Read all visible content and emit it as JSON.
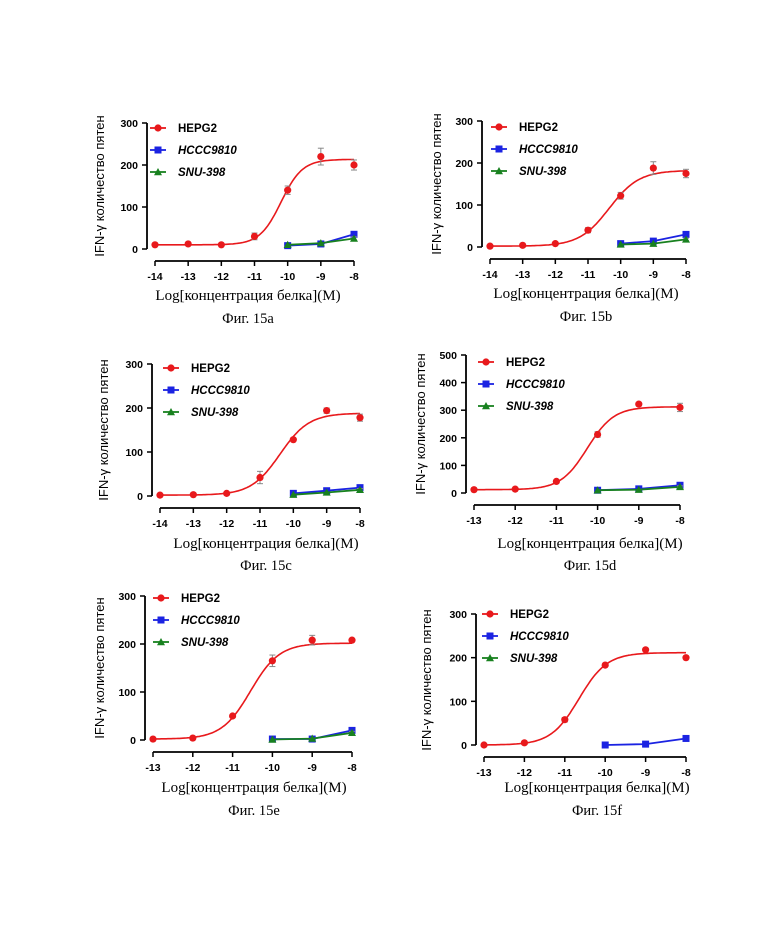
{
  "figure": {
    "ylabel": "IFN-γ количество пятен",
    "xlabel": "Log[концентрация белка](M)",
    "series_names": [
      "HEPG2",
      "HCCC9810",
      "SNU-398"
    ],
    "colors": {
      "HEPG2": "#e8191c",
      "HCCC9810": "#1b23e2",
      "SNU-398": "#18811f"
    }
  },
  "chart_data": [
    {
      "type": "scatter",
      "caption": "Фиг. 15a",
      "xlabel": "Log[концентрация белка](M)",
      "ylabel": "IFN-γ количество пятен",
      "xlim": [
        -14,
        -8
      ],
      "ylim": [
        0,
        300
      ],
      "xticks": [
        "-14",
        "-13",
        "-12",
        "-11",
        "-10",
        "-9",
        "-8"
      ],
      "yticks": [
        "0",
        "100",
        "200",
        "300"
      ],
      "series": [
        {
          "name": "HEPG2",
          "marker": "circle",
          "x": [
            -14,
            -13,
            -12,
            -11,
            -10,
            -9,
            -8
          ],
          "y": [
            10,
            12,
            10,
            30,
            140,
            220,
            200
          ],
          "err": [
            0,
            0,
            0,
            8,
            10,
            20,
            12
          ]
        },
        {
          "name": "HCCC9810",
          "marker": "square",
          "x": [
            -10,
            -9,
            -8
          ],
          "y": [
            8,
            12,
            35
          ],
          "err": [
            0,
            0,
            5
          ]
        },
        {
          "name": "SNU-398",
          "marker": "triangle",
          "x": [
            -10,
            -9,
            -8
          ],
          "y": [
            10,
            14,
            25
          ],
          "err": [
            0,
            0,
            4
          ]
        }
      ]
    },
    {
      "type": "scatter",
      "caption": "Фиг. 15b",
      "xlabel": "Log[концентрация белка](M)",
      "ylabel": "IFN-γ количество пятен",
      "xlim": [
        -14,
        -8
      ],
      "ylim": [
        0,
        300
      ],
      "xticks": [
        "-14",
        "-13",
        "-12",
        "-11",
        "-10",
        "-9",
        "-8"
      ],
      "yticks": [
        "0",
        "100",
        "200",
        "300"
      ],
      "series": [
        {
          "name": "HEPG2",
          "marker": "circle",
          "x": [
            -14,
            -13,
            -12,
            -11,
            -10,
            -9,
            -8
          ],
          "y": [
            2,
            4,
            8,
            40,
            122,
            188,
            175
          ],
          "err": [
            0,
            0,
            0,
            6,
            8,
            15,
            10
          ]
        },
        {
          "name": "HCCC9810",
          "marker": "square",
          "x": [
            -10,
            -9,
            -8
          ],
          "y": [
            8,
            14,
            30
          ],
          "err": [
            0,
            0,
            4
          ]
        },
        {
          "name": "SNU-398",
          "marker": "triangle",
          "x": [
            -10,
            -9,
            -8
          ],
          "y": [
            6,
            8,
            18
          ],
          "err": [
            0,
            0,
            3
          ]
        }
      ]
    },
    {
      "type": "scatter",
      "caption": "Фиг. 15c",
      "xlabel": "Log[концентрация белка](M)",
      "ylabel": "IFN-γ количество пятен",
      "xlim": [
        -14,
        -8
      ],
      "ylim": [
        0,
        300
      ],
      "xticks": [
        "-14",
        "-13",
        "-12",
        "-11",
        "-10",
        "-9",
        "-8"
      ],
      "yticks": [
        "0",
        "100",
        "200",
        "300"
      ],
      "series": [
        {
          "name": "HEPG2",
          "marker": "circle",
          "x": [
            -14,
            -13,
            -12,
            -11,
            -10,
            -9,
            -8
          ],
          "y": [
            2,
            3,
            6,
            42,
            128,
            194,
            178
          ],
          "err": [
            0,
            0,
            0,
            14,
            0,
            6,
            8
          ]
        },
        {
          "name": "HCCC9810",
          "marker": "square",
          "x": [
            -10,
            -9,
            -8
          ],
          "y": [
            6,
            12,
            19
          ],
          "err": [
            0,
            0,
            3
          ]
        },
        {
          "name": "SNU-398",
          "marker": "triangle",
          "x": [
            -10,
            -9,
            -8
          ],
          "y": [
            3,
            8,
            14
          ],
          "err": [
            0,
            0,
            3
          ]
        }
      ]
    },
    {
      "type": "scatter",
      "caption": "Фиг. 15d",
      "xlabel": "Log[концентрация белка](M)",
      "ylabel": "IFN-γ количество пятен",
      "xlim": [
        -13,
        -8
      ],
      "ylim": [
        0,
        500
      ],
      "xticks": [
        "-13",
        "-12",
        "-11",
        "-10",
        "-9",
        "-8"
      ],
      "yticks": [
        "0",
        "100",
        "200",
        "300",
        "400",
        "500"
      ],
      "series": [
        {
          "name": "HEPG2",
          "marker": "circle",
          "x": [
            -13,
            -12,
            -11,
            -10,
            -9,
            -8
          ],
          "y": [
            12,
            14,
            42,
            212,
            322,
            310
          ],
          "err": [
            0,
            0,
            0,
            10,
            6,
            15
          ]
        },
        {
          "name": "HCCC9810",
          "marker": "square",
          "x": [
            -10,
            -9,
            -8
          ],
          "y": [
            10,
            15,
            28
          ],
          "err": [
            0,
            0,
            5
          ]
        },
        {
          "name": "SNU-398",
          "marker": "triangle",
          "x": [
            -10,
            -9,
            -8
          ],
          "y": [
            10,
            12,
            22
          ],
          "err": [
            0,
            0,
            4
          ]
        }
      ]
    },
    {
      "type": "scatter",
      "caption": "Фиг. 15e",
      "xlabel": "Log[концентрация белка](M)",
      "ylabel": "IFN-γ количество пятен",
      "xlim": [
        -13,
        -8
      ],
      "ylim": [
        0,
        300
      ],
      "xticks": [
        "-13",
        "-12",
        "-11",
        "-10",
        "-9",
        "-8"
      ],
      "yticks": [
        "0",
        "100",
        "200",
        "300"
      ],
      "series": [
        {
          "name": "HEPG2",
          "marker": "circle",
          "x": [
            -13,
            -12,
            -11,
            -10,
            -9,
            -8
          ],
          "y": [
            2,
            4,
            50,
            165,
            208,
            208
          ],
          "err": [
            0,
            0,
            0,
            12,
            10,
            3
          ]
        },
        {
          "name": "HCCC9810",
          "marker": "square",
          "x": [
            -10,
            -9,
            -8
          ],
          "y": [
            2,
            2,
            20
          ],
          "err": [
            0,
            0,
            4
          ]
        },
        {
          "name": "SNU-398",
          "marker": "triangle",
          "x": [
            -10,
            -9,
            -8
          ],
          "y": [
            1,
            3,
            15
          ],
          "err": [
            0,
            0,
            3
          ]
        }
      ]
    },
    {
      "type": "scatter",
      "caption": "Фиг. 15f",
      "xlabel": "Log[концентрация белка](M)",
      "ylabel": "IFN-γ количество пятен",
      "xlim": [
        -13,
        -8
      ],
      "ylim": [
        0,
        300
      ],
      "xticks": [
        "-13",
        "-12",
        "-11",
        "-10",
        "-9",
        "-8"
      ],
      "yticks": [
        "0",
        "100",
        "200",
        "300"
      ],
      "series": [
        {
          "name": "HEPG2",
          "marker": "circle",
          "x": [
            -13,
            -12,
            -11,
            -10,
            -9,
            -8
          ],
          "y": [
            0,
            5,
            58,
            183,
            218,
            200
          ],
          "err": [
            0,
            0,
            5,
            0,
            0,
            0
          ]
        },
        {
          "name": "HCCC9810",
          "marker": "square",
          "x": [
            -10,
            -9,
            -8
          ],
          "y": [
            0,
            2,
            15
          ],
          "err": [
            0,
            0,
            0
          ]
        },
        {
          "name": "SNU-398",
          "marker": "triangle",
          "x": [],
          "y": [],
          "err": []
        }
      ]
    }
  ]
}
